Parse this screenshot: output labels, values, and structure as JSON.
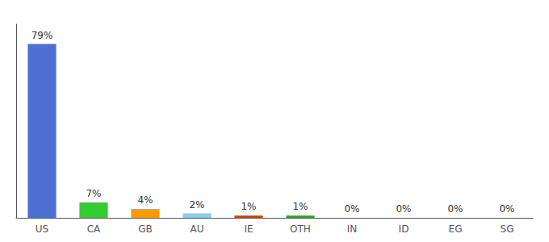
{
  "chart_data": {
    "type": "bar",
    "categories": [
      "US",
      "CA",
      "GB",
      "AU",
      "IE",
      "OTH",
      "IN",
      "ID",
      "EG",
      "SG"
    ],
    "values": [
      79,
      7,
      4,
      2,
      1,
      1,
      0,
      0,
      0,
      0
    ],
    "value_labels": [
      "79%",
      "7%",
      "4%",
      "2%",
      "1%",
      "1%",
      "0%",
      "0%",
      "0%",
      "0%"
    ],
    "colors": [
      "#4d6fd4",
      "#33cc33",
      "#ff9900",
      "#88ccee",
      "#cc4400",
      "#22aa22",
      "#4d6fd4",
      "#4d6fd4",
      "#4d6fd4",
      "#4d6fd4"
    ],
    "ylim": [
      0,
      88
    ],
    "yticks": [],
    "tick_labels": "x",
    "grid": false,
    "data_labels": true
  }
}
